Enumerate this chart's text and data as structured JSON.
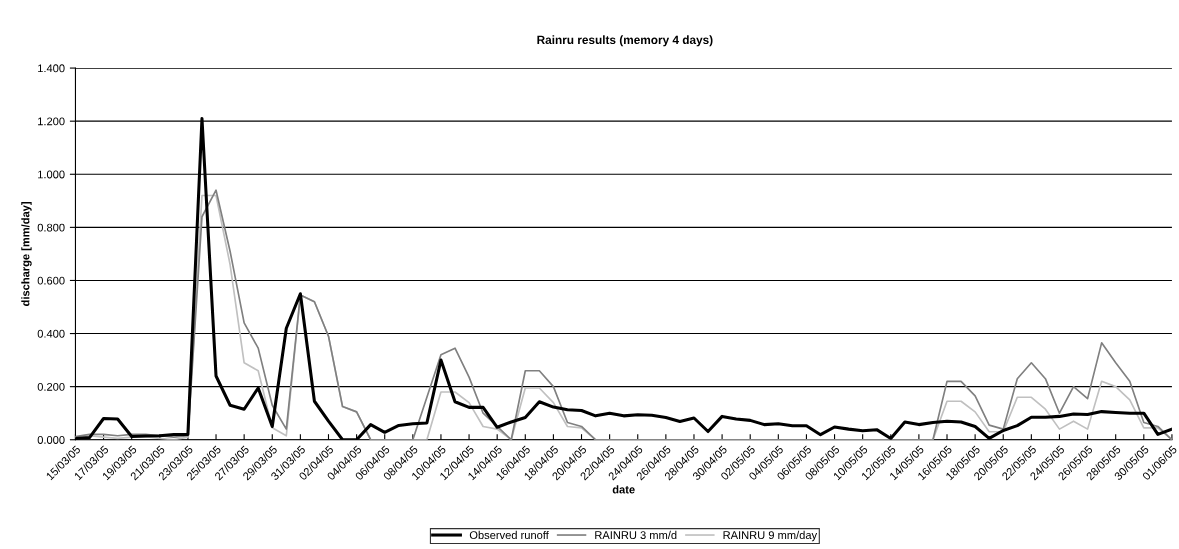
{
  "chart_data": {
    "type": "line",
    "title": "Rainru results (memory 4 days)",
    "xlabel": "date",
    "ylabel": "discharge [mm/day]",
    "categories": [
      "15/03/05",
      null,
      "17/03/05",
      null,
      "19/03/05",
      null,
      "21/03/05",
      null,
      "23/03/05",
      null,
      "25/03/05",
      null,
      "27/03/05",
      null,
      "29/03/05",
      null,
      "31/03/05",
      null,
      "02/04/05",
      null,
      "04/04/05",
      null,
      "06/04/05",
      null,
      "08/04/05",
      null,
      "10/04/05",
      null,
      "12/04/05",
      null,
      "14/04/05",
      null,
      "16/04/05",
      null,
      "18/04/05",
      null,
      "20/04/05",
      null,
      "22/04/05",
      null,
      "24/04/05",
      null,
      "26/04/05",
      null,
      "28/04/05",
      null,
      "30/04/05",
      null,
      "02/05/05",
      null,
      "04/05/05",
      null,
      "06/05/05",
      null,
      "08/05/05",
      null,
      "10/05/05",
      null,
      "12/05/05",
      null,
      "14/05/05",
      null,
      "16/05/05",
      null,
      "18/05/05",
      null,
      "20/05/05",
      null,
      "22/05/05",
      null,
      "24/05/05",
      null,
      "26/05/05",
      null,
      "28/05/05",
      null,
      "30/05/05",
      null,
      "01/06/05"
    ],
    "series": [
      {
        "name": "Observed runoff",
        "color": "#000000",
        "values": [
          0.005,
          0.008,
          0.08,
          0.078,
          0.012,
          0.014,
          0.015,
          0.02,
          0.02,
          1.21,
          0.24,
          0.13,
          0.115,
          0.195,
          0.05,
          0.42,
          0.55,
          0.145,
          0.07,
          0,
          0,
          0.057,
          0.028,
          0.054,
          0.06,
          0.063,
          0.3,
          0.143,
          0.122,
          0.122,
          0.047,
          0.067,
          0.084,
          0.143,
          0.123,
          0.113,
          0.11,
          0.09,
          0.1,
          0.09,
          0.094,
          0.092,
          0.084,
          0.069,
          0.082,
          0.031,
          0.088,
          0.078,
          0.073,
          0.057,
          0.06,
          0.053,
          0.053,
          0.019,
          0.048,
          0.04,
          0.034,
          0.038,
          0.005,
          0.067,
          0.057,
          0.065,
          0.07,
          0.067,
          0.05,
          0.005,
          0.035,
          0.053,
          0.085,
          0.085,
          0.088,
          0.097,
          0.095,
          0.106,
          0.103,
          0.1,
          0.1,
          0.02,
          0.04
        ]
      },
      {
        "name": "RAINRU 3 mm/d",
        "color": "#808080",
        "values": [
          0.012,
          0.02,
          0.02,
          0.015,
          0.02,
          0.02,
          0.015,
          0.01,
          0.015,
          0.84,
          0.94,
          0.71,
          0.44,
          0.345,
          0.13,
          0.04,
          0.545,
          0.52,
          0.39,
          0.125,
          0.105,
          0,
          0,
          0,
          0,
          0.16,
          0.32,
          0.345,
          0.236,
          0.1,
          0.05,
          0,
          0.26,
          0.26,
          0.2,
          0.065,
          0.05,
          0,
          0,
          0,
          0,
          0,
          0,
          0,
          0,
          0,
          0,
          0,
          0,
          0,
          0,
          0,
          0,
          0,
          0,
          0,
          0,
          0,
          0,
          0,
          0,
          0,
          0.22,
          0.22,
          0.165,
          0.055,
          0.04,
          0.23,
          0.29,
          0.23,
          0.1,
          0.2,
          0.155,
          0.365,
          0.29,
          0.22,
          0.065,
          0.05,
          0
        ]
      },
      {
        "name": "RAINRU 9 mm/day",
        "color": "#c0c0c0",
        "values": [
          0.01,
          0.015,
          0.01,
          0.005,
          0.01,
          0.012,
          0.005,
          0,
          0.01,
          0.92,
          0.92,
          0.66,
          0.29,
          0.26,
          0.045,
          0.015,
          0.545,
          0.52,
          0.39,
          0.125,
          0.105,
          0,
          0,
          0,
          0,
          0,
          0.18,
          0.18,
          0.14,
          0.05,
          0.04,
          0,
          0.195,
          0.195,
          0.14,
          0.05,
          0.045,
          0,
          0,
          0,
          0,
          0,
          0,
          0,
          0,
          0,
          0,
          0,
          0,
          0,
          0,
          0,
          0,
          0,
          0,
          0,
          0,
          0,
          0,
          0,
          0,
          0,
          0.145,
          0.145,
          0.105,
          0.03,
          0.03,
          0.16,
          0.16,
          0.115,
          0.04,
          0.07,
          0.04,
          0.22,
          0.2,
          0.15,
          0.045,
          0.045,
          0
        ]
      }
    ],
    "ylim": [
      0,
      1.4
    ],
    "yticks": [
      {
        "value": 0,
        "label": "0.000"
      },
      {
        "value": 0.2,
        "label": "0.200"
      },
      {
        "value": 0.4,
        "label": "0.400"
      },
      {
        "value": 0.6,
        "label": "0.600"
      },
      {
        "value": 0.8,
        "label": "0.800"
      },
      {
        "value": 1.0,
        "label": "1.000"
      },
      {
        "value": 1.2,
        "label": "1.200"
      },
      {
        "value": 1.4,
        "label": "1.400"
      }
    ],
    "grid": "y",
    "legend": "bottom",
    "marker": "none",
    "line_style": "solid"
  }
}
